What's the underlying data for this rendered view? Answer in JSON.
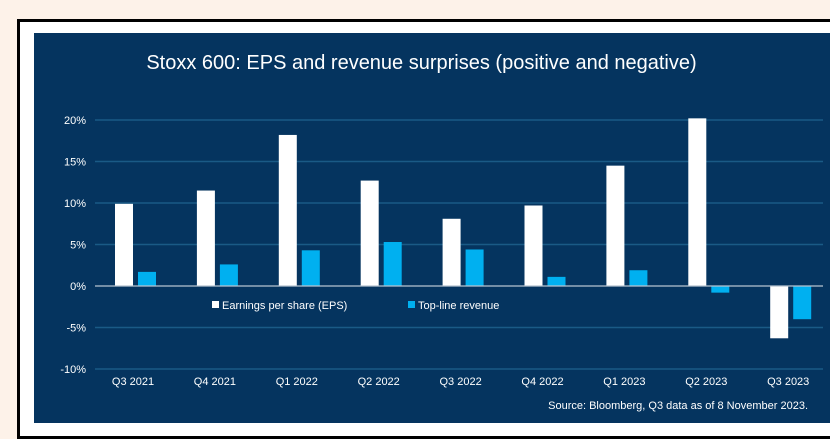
{
  "chart_data": {
    "type": "bar",
    "title": "Stoxx 600: EPS and revenue surprises (positive and negative)",
    "categories": [
      "Q3 2021",
      "Q4 2021",
      "Q1 2022",
      "Q2 2022",
      "Q3 2022",
      "Q4 2022",
      "Q1 2023",
      "Q2 2023",
      "Q3 2023"
    ],
    "series": [
      {
        "name": "Earnings per share (EPS)",
        "color": "#ffffff",
        "values": [
          9.9,
          11.5,
          18.2,
          12.7,
          8.1,
          9.7,
          14.5,
          20.2,
          -6.3
        ]
      },
      {
        "name": "Top-line revenue",
        "color": "#00b0f0",
        "values": [
          1.7,
          2.6,
          4.3,
          5.3,
          4.4,
          1.1,
          1.9,
          -0.8,
          -4.0
        ]
      }
    ],
    "yticks": [
      "20%",
      "15%",
      "10%",
      "5%",
      "0%",
      "-5%",
      "-10%"
    ],
    "ytick_values": [
      20,
      15,
      10,
      5,
      0,
      -5,
      -10
    ],
    "ylim": [
      -10,
      20
    ],
    "grid": true,
    "legend": "inside-middle-left",
    "source": "Source: Bloomberg, Q3 data as of 8 November 2023."
  }
}
